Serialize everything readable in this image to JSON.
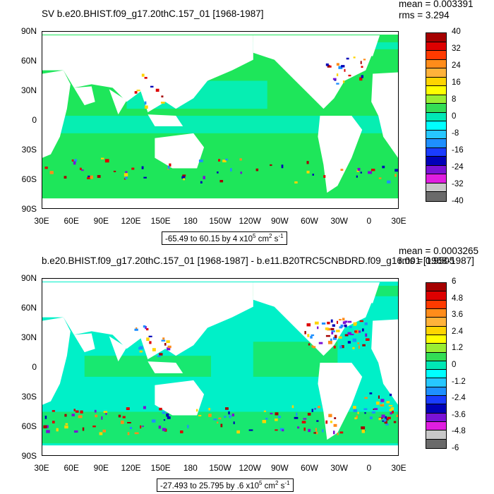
{
  "panels": [
    {
      "title": "SV b.e20.BHIST.f09_g17.20thC.157_01 [1968-1987]",
      "mean_label": "mean = 0.003391",
      "rms_label": "rms = 3.294",
      "range_text": "-65.49 to 60.15 by 4 x10",
      "range_exp": "5",
      "range_units": " cm",
      "range_units_exp": "2",
      "range_units_tail": " s",
      "range_units_tail_exp": "-1",
      "colorbar_labels": [
        "40",
        "32",
        "24",
        "16",
        "8",
        "0",
        "-8",
        "-16",
        "-24",
        "-32",
        "-40"
      ]
    },
    {
      "title": "b.e20.BHIST.f09_g17.20thC.157_01 [1968-1987] - b.e11.B20TRC5CNBDRD.f09_g16.001 [1968-1987]",
      "mean_label": "mean = 0.0003265",
      "rms_label": "rms = 0.9505",
      "range_text": "-27.493 to 25.795 by .6 x10",
      "range_exp": "5",
      "range_units": " cm",
      "range_units_exp": "2",
      "range_units_tail": " s",
      "range_units_tail_exp": "-1",
      "colorbar_labels": [
        "6",
        "4.8",
        "3.6",
        "2.4",
        "1.2",
        "0",
        "-1.2",
        "-2.4",
        "-3.6",
        "-4.8",
        "-6"
      ]
    }
  ],
  "axes": {
    "y_ticks": [
      "90N",
      "60N",
      "30N",
      "0",
      "30S",
      "60S",
      "90S"
    ],
    "x_ticks": [
      "30E",
      "60E",
      "90E",
      "120E",
      "150E",
      "180",
      "150W",
      "120W",
      "90W",
      "60W",
      "30W",
      "0",
      "30E"
    ]
  },
  "colorbar_colors": [
    "#a50000",
    "#dd0000",
    "#ff3a00",
    "#ff8c1a",
    "#ffb23a",
    "#ffd400",
    "#ffff00",
    "#99ee33",
    "#33dd55",
    "#00e8b5",
    "#00ffff",
    "#27c7ff",
    "#1e8fff",
    "#1a3cff",
    "#0000b8",
    "#7a12d6",
    "#e01ee0",
    "#c8c8c8",
    "#6a6a6a"
  ],
  "map_colors": {
    "ocean": "#1ee65a",
    "ocean_light": "#00f0c8",
    "land": "#ffffff"
  },
  "chart_data": [
    {
      "type": "heatmap",
      "title": "SV b.e20.BHIST.f09_g17.20thC.157_01 [1968-1987]",
      "x_range": [
        "30E",
        "30E"
      ],
      "y_range": [
        "90S",
        "90N"
      ],
      "color_levels": [
        -40,
        -32,
        -24,
        -16,
        -8,
        0,
        8,
        16,
        24,
        32,
        40
      ],
      "mean": 0.003391,
      "rms": 3.294,
      "min": -65.49,
      "max": 60.15,
      "contour_interval": 4
    },
    {
      "type": "heatmap",
      "title": "b.e20.BHIST.f09_g17.20thC.157_01 [1968-1987] - b.e11.B20TRC5CNBDRD.f09_g16.001 [1968-1987]",
      "x_range": [
        "30E",
        "30E"
      ],
      "y_range": [
        "90S",
        "90N"
      ],
      "color_levels": [
        -6,
        -4.8,
        -3.6,
        -2.4,
        -1.2,
        0,
        1.2,
        2.4,
        3.6,
        4.8,
        6
      ],
      "mean": 0.0003265,
      "rms": 0.9505,
      "min": -27.493,
      "max": 25.795,
      "contour_interval": 0.6
    }
  ]
}
